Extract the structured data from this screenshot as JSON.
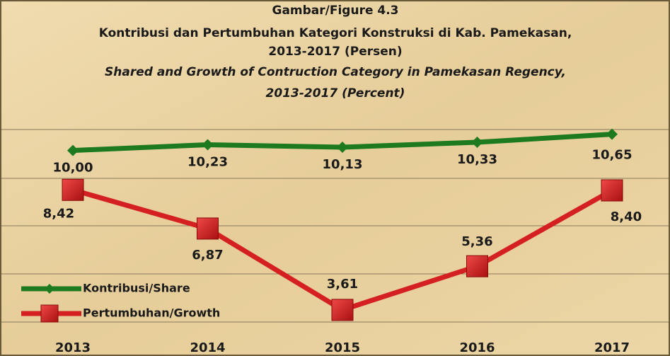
{
  "chart_data": {
    "type": "line",
    "title": [
      "Gambar/Figure 4.3",
      "Kontribusi dan Pertumbuhan Kategori Konstruksi di Kab. Pamekasan,",
      "2013-2017 (Persen)",
      "Shared and Growth of Contruction Category in Pamekasan Regency,",
      "2013-2017 (Percent)"
    ],
    "categories": [
      "2013",
      "2014",
      "2015",
      "2016",
      "2017"
    ],
    "series": [
      {
        "name": "Kontribusi/Share",
        "color": "#1e7a1e",
        "values": [
          10.0,
          10.23,
          10.13,
          10.33,
          10.65
        ],
        "value_labels": [
          "10,00",
          "10,23",
          "10,13",
          "10,33",
          "10,65"
        ]
      },
      {
        "name": "Pertumbuhan/Growth",
        "color": "#d42020",
        "values": [
          8.42,
          6.87,
          3.61,
          5.36,
          8.4
        ],
        "value_labels": [
          "8,42",
          "6,87",
          "3,61",
          "5,36",
          "8,40"
        ]
      }
    ],
    "ylim": [
      2.5,
      11.35
    ],
    "legend": "lower-left"
  }
}
